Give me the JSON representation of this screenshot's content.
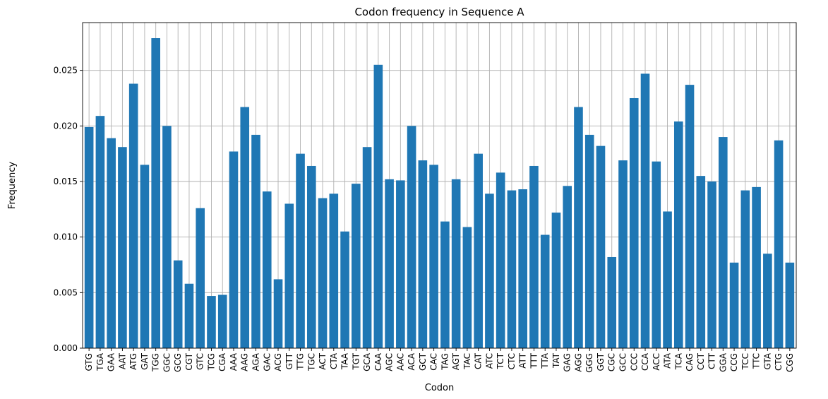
{
  "chart_data": {
    "type": "bar",
    "title": "Codon frequency in Sequence A",
    "xlabel": "Codon",
    "ylabel": "Frequency",
    "ylim": [
      0,
      0.0293
    ],
    "yticks": [
      "0.000",
      "0.005",
      "0.010",
      "0.015",
      "0.020",
      "0.025"
    ],
    "ytick_values": [
      0,
      0.005,
      0.01,
      0.015,
      0.02,
      0.025
    ],
    "grid": true,
    "bar_color": "#1f77b4",
    "categories": [
      "GTG",
      "TGA",
      "GAA",
      "AAT",
      "ATG",
      "GAT",
      "TGG",
      "GGC",
      "GCG",
      "CGT",
      "GTC",
      "TCG",
      "CGA",
      "AAA",
      "AAG",
      "AGA",
      "GAC",
      "ACG",
      "GTT",
      "TTG",
      "TGC",
      "ACT",
      "CTA",
      "TAA",
      "TGT",
      "GCA",
      "CAA",
      "AGC",
      "AAC",
      "ACA",
      "GCT",
      "CAC",
      "TAG",
      "AGT",
      "TAC",
      "CAT",
      "ATC",
      "TCT",
      "CTC",
      "ATT",
      "TTT",
      "TTA",
      "TAT",
      "GAG",
      "AGG",
      "GGG",
      "GGT",
      "CGC",
      "GCC",
      "CCC",
      "CCA",
      "ACC",
      "ATA",
      "TCA",
      "CAG",
      "CCT",
      "CTT",
      "GGA",
      "CCG",
      "TCC",
      "TTC",
      "GTA",
      "CTG",
      "CGG"
    ],
    "values": [
      0.0199,
      0.0209,
      0.0189,
      0.0181,
      0.0238,
      0.0165,
      0.0279,
      0.02,
      0.0079,
      0.0058,
      0.0126,
      0.0047,
      0.0048,
      0.0177,
      0.0217,
      0.0192,
      0.0141,
      0.0062,
      0.013,
      0.0175,
      0.0164,
      0.0135,
      0.0139,
      0.0105,
      0.0148,
      0.0181,
      0.0255,
      0.0152,
      0.0151,
      0.02,
      0.0169,
      0.0165,
      0.0114,
      0.0152,
      0.0109,
      0.0175,
      0.0139,
      0.0158,
      0.0142,
      0.0143,
      0.0164,
      0.0102,
      0.0122,
      0.0146,
      0.0217,
      0.0192,
      0.0182,
      0.0082,
      0.0169,
      0.0225,
      0.0247,
      0.0168,
      0.0123,
      0.0204,
      0.0237,
      0.0155,
      0.015,
      0.019,
      0.0077,
      0.0142,
      0.0145,
      0.0085,
      0.0187,
      0.0077
    ]
  }
}
